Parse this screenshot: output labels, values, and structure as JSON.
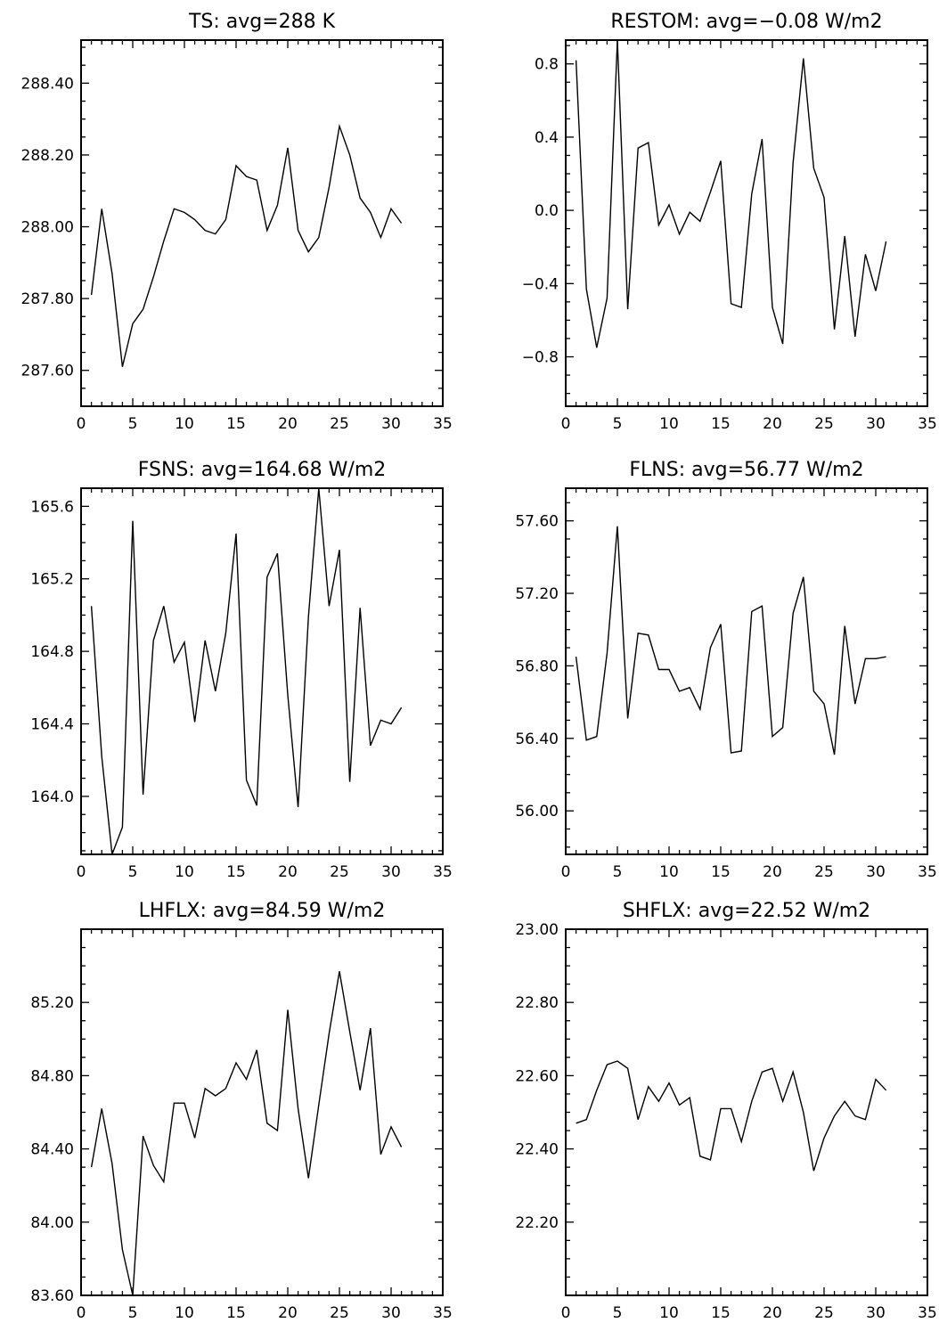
{
  "chart_data": [
    {
      "type": "line",
      "title": "TS: avg=288 K",
      "xlim": [
        0,
        35
      ],
      "xticks": [
        "0",
        "5",
        "10",
        "15",
        "20",
        "25",
        "30",
        "35"
      ],
      "ylim": [
        287.5,
        288.52
      ],
      "yticks": [
        "287.60",
        "287.80",
        "288.00",
        "288.20",
        "288.40"
      ],
      "series": [
        {
          "x": [
            1,
            2,
            3,
            4,
            5,
            6,
            7,
            8,
            9,
            10,
            11,
            12,
            13,
            14,
            15,
            16,
            17,
            18,
            19,
            20,
            21,
            22,
            23,
            24,
            25,
            26,
            27,
            28,
            29,
            30,
            31
          ],
          "values": [
            287.81,
            288.05,
            287.87,
            287.61,
            287.73,
            287.77,
            287.86,
            287.96,
            288.05,
            288.04,
            288.02,
            287.99,
            287.98,
            288.02,
            288.17,
            288.14,
            288.13,
            287.99,
            288.06,
            288.22,
            287.99,
            287.93,
            287.97,
            288.11,
            288.28,
            288.2,
            288.08,
            288.04,
            287.97,
            288.05,
            288.01
          ]
        }
      ]
    },
    {
      "type": "line",
      "title": "RESTOM: avg=−0.08 W/m2",
      "xlim": [
        0,
        35
      ],
      "xticks": [
        "0",
        "5",
        "10",
        "15",
        "20",
        "25",
        "30",
        "35"
      ],
      "ylim": [
        -1.07,
        0.93
      ],
      "yticks": [
        "−0.8",
        "−0.4",
        "0.0",
        "0.4",
        "0.8"
      ],
      "series": [
        {
          "x": [
            1,
            2,
            3,
            4,
            5,
            6,
            7,
            8,
            9,
            10,
            11,
            12,
            13,
            14,
            15,
            16,
            17,
            18,
            19,
            20,
            21,
            22,
            23,
            24,
            25,
            26,
            27,
            28,
            29,
            30,
            31
          ],
          "values": [
            0.82,
            -0.43,
            -0.75,
            -0.48,
            0.93,
            -0.54,
            0.34,
            0.37,
            -0.08,
            0.03,
            -0.13,
            -0.01,
            -0.06,
            0.1,
            0.27,
            -0.51,
            -0.53,
            0.09,
            0.39,
            -0.53,
            -0.73,
            0.26,
            0.83,
            0.23,
            0.07,
            -0.65,
            -0.14,
            -0.69,
            -0.24,
            -0.44,
            -0.17
          ]
        }
      ]
    },
    {
      "type": "line",
      "title": "FSNS: avg=164.68 W/m2",
      "xlim": [
        0,
        35
      ],
      "xticks": [
        "0",
        "5",
        "10",
        "15",
        "20",
        "25",
        "30",
        "35"
      ],
      "ylim": [
        163.68,
        165.7
      ],
      "yticks": [
        "164.0",
        "164.4",
        "164.8",
        "165.2",
        "165.6"
      ],
      "series": [
        {
          "x": [
            1,
            2,
            3,
            4,
            5,
            6,
            7,
            8,
            9,
            10,
            11,
            12,
            13,
            14,
            15,
            16,
            17,
            18,
            19,
            20,
            21,
            22,
            23,
            24,
            25,
            26,
            27,
            28,
            29,
            30,
            31
          ],
          "values": [
            165.05,
            164.22,
            163.68,
            163.83,
            165.52,
            164.01,
            164.86,
            165.05,
            164.74,
            164.85,
            164.41,
            164.86,
            164.58,
            164.9,
            165.45,
            164.09,
            163.95,
            165.21,
            165.34,
            164.56,
            163.94,
            164.99,
            165.7,
            165.05,
            165.36,
            164.08,
            165.04,
            164.28,
            164.42,
            164.4,
            164.49
          ]
        }
      ]
    },
    {
      "type": "line",
      "title": "FLNS: avg=56.77 W/m2",
      "xlim": [
        0,
        35
      ],
      "xticks": [
        "0",
        "5",
        "10",
        "15",
        "20",
        "25",
        "30",
        "35"
      ],
      "ylim": [
        55.76,
        57.78
      ],
      "yticks": [
        "56.00",
        "56.40",
        "56.80",
        "57.20",
        "57.60"
      ],
      "series": [
        {
          "x": [
            1,
            2,
            3,
            4,
            5,
            6,
            7,
            8,
            9,
            10,
            11,
            12,
            13,
            14,
            15,
            16,
            17,
            18,
            19,
            20,
            21,
            22,
            23,
            24,
            25,
            26,
            27,
            28,
            29,
            30,
            31
          ],
          "values": [
            56.85,
            56.39,
            56.41,
            56.87,
            57.57,
            56.51,
            56.98,
            56.97,
            56.78,
            56.78,
            56.66,
            56.68,
            56.56,
            56.9,
            57.03,
            56.32,
            56.33,
            57.1,
            57.13,
            56.41,
            56.46,
            57.09,
            57.29,
            56.66,
            56.59,
            56.31,
            57.02,
            56.59,
            56.84,
            56.84,
            56.85
          ]
        }
      ]
    },
    {
      "type": "line",
      "title": "LHFLX: avg=84.59 W/m2",
      "xlim": [
        0,
        35
      ],
      "xticks": [
        "0",
        "5",
        "10",
        "15",
        "20",
        "25",
        "30",
        "35"
      ],
      "ylim": [
        83.6,
        85.6
      ],
      "yticks": [
        "83.60",
        "84.00",
        "84.40",
        "84.80",
        "85.20"
      ],
      "series": [
        {
          "x": [
            1,
            2,
            3,
            4,
            5,
            6,
            7,
            8,
            9,
            10,
            11,
            12,
            13,
            14,
            15,
            16,
            17,
            18,
            19,
            20,
            21,
            22,
            23,
            24,
            25,
            26,
            27,
            28,
            29,
            30,
            31
          ],
          "values": [
            84.3,
            84.62,
            84.32,
            83.85,
            83.6,
            84.47,
            84.31,
            84.22,
            84.65,
            84.65,
            84.46,
            84.73,
            84.69,
            84.73,
            84.87,
            84.78,
            84.94,
            84.54,
            84.5,
            85.16,
            84.62,
            84.24,
            84.64,
            85.03,
            85.37,
            85.04,
            84.72,
            85.06,
            84.37,
            84.52,
            84.41
          ]
        }
      ]
    },
    {
      "type": "line",
      "title": "SHFLX: avg=22.52 W/m2",
      "xlim": [
        0,
        35
      ],
      "xticks": [
        "0",
        "5",
        "10",
        "15",
        "20",
        "25",
        "30",
        "35"
      ],
      "ylim": [
        22.0,
        23.0
      ],
      "yticks": [
        "22.20",
        "22.40",
        "22.60",
        "22.80",
        "23.00"
      ],
      "series": [
        {
          "x": [
            1,
            2,
            3,
            4,
            5,
            6,
            7,
            8,
            9,
            10,
            11,
            12,
            13,
            14,
            15,
            16,
            17,
            18,
            19,
            20,
            21,
            22,
            23,
            24,
            25,
            26,
            27,
            28,
            29,
            30,
            31
          ],
          "values": [
            22.47,
            22.48,
            22.56,
            22.63,
            22.64,
            22.62,
            22.48,
            22.57,
            22.53,
            22.58,
            22.52,
            22.54,
            22.38,
            22.37,
            22.51,
            22.51,
            22.42,
            22.53,
            22.61,
            22.62,
            22.53,
            22.61,
            22.5,
            22.34,
            22.43,
            22.49,
            22.53,
            22.49,
            22.48,
            22.59,
            22.56
          ]
        }
      ]
    }
  ]
}
